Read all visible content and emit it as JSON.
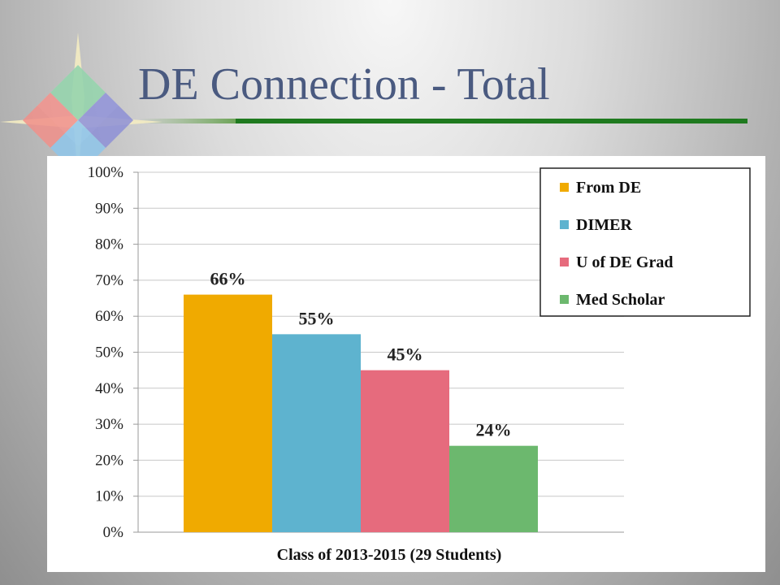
{
  "slide": {
    "title": "DE Connection - Total",
    "accent_color": "#1f7a1f",
    "title_color": "#4a5a80",
    "logo_icon": "compass-star-icon"
  },
  "chart_data": {
    "type": "bar",
    "title": "",
    "xlabel": "Class of 2013-2015 (29 Students)",
    "ylabel": "",
    "ylim": [
      0,
      100
    ],
    "y_ticks": [
      "0%",
      "10%",
      "20%",
      "30%",
      "40%",
      "50%",
      "60%",
      "70%",
      "80%",
      "90%",
      "100%"
    ],
    "grid": true,
    "legend_position": "top-right",
    "series": [
      {
        "name": "From DE",
        "values": [
          66
        ],
        "label": "66%",
        "color": "#f0aa00"
      },
      {
        "name": "DIMER",
        "values": [
          55
        ],
        "label": "55%",
        "color": "#5eb3cf"
      },
      {
        "name": "U of DE Grad",
        "values": [
          45
        ],
        "label": "45%",
        "color": "#e66b7d"
      },
      {
        "name": "Med Scholar",
        "values": [
          24
        ],
        "label": "24%",
        "color": "#6cb86e"
      }
    ]
  }
}
